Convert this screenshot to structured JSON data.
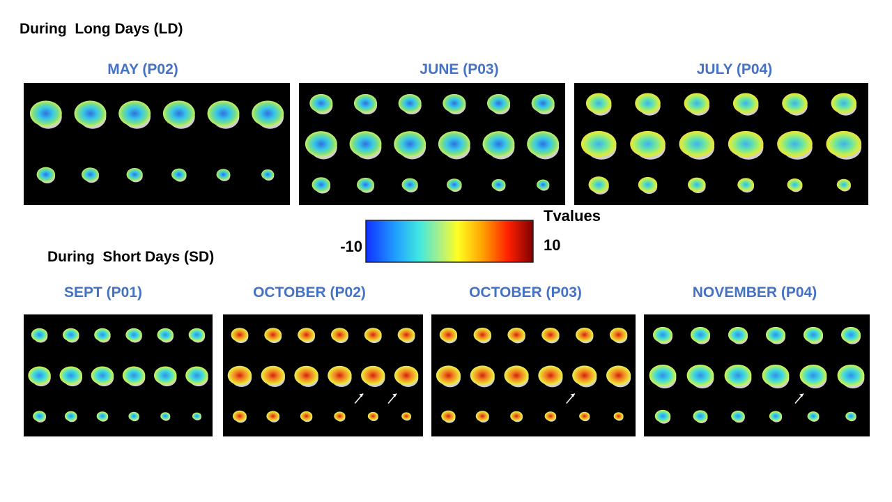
{
  "header": {
    "long_days": "During  Long Days (LD)",
    "short_days": "During  Short Days (SD)"
  },
  "panels_ld": [
    {
      "title": "MAY (P02)"
    },
    {
      "title": "JUNE (P03)"
    },
    {
      "title": "JULY (P04)"
    }
  ],
  "colorbar": {
    "title": "Tvalues",
    "min": -10,
    "max": 10
  },
  "panels_sd": [
    {
      "title": "SEPT (P01)"
    },
    {
      "title": "OCTOBER (P02)"
    },
    {
      "title": "OCTOBER (P03)"
    },
    {
      "title": "NOVEMBER (P04)"
    }
  ]
}
